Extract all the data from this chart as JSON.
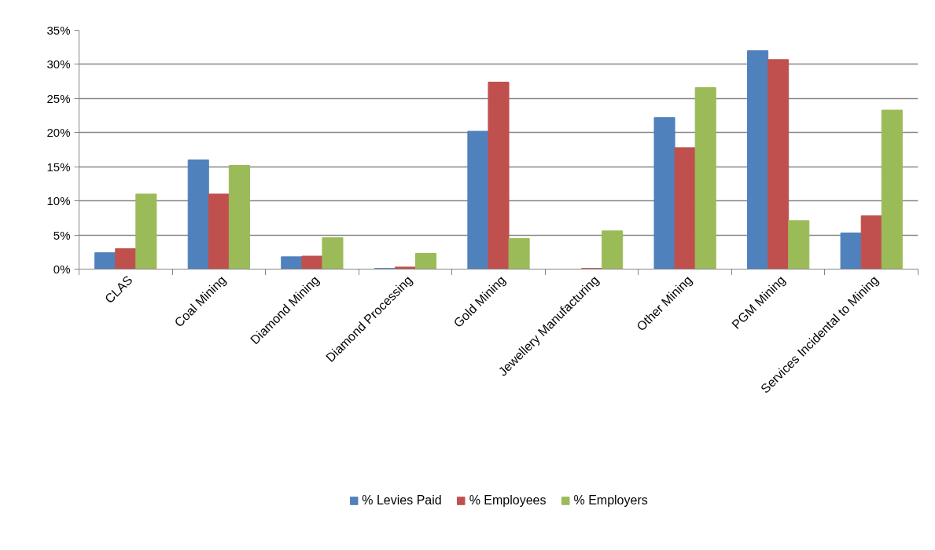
{
  "chart_data": {
    "type": "bar",
    "categories": [
      "CLAS",
      "Coal Mining",
      "Diamond Mining",
      "Diamond Processing",
      "Gold Mining",
      "Jewellery Manufacturing",
      "Other Mining",
      "PGM Mining",
      "Services Incidental to Mining"
    ],
    "series": [
      {
        "name": "% Levies Paid",
        "color": "#4f81bd",
        "values": [
          2.4,
          16.0,
          1.8,
          0.1,
          20.2,
          0.0,
          22.2,
          32.0,
          5.3
        ]
      },
      {
        "name": "% Employees",
        "color": "#c0504d",
        "values": [
          3.0,
          11.0,
          1.9,
          0.3,
          27.4,
          0.1,
          17.8,
          30.7,
          7.8
        ]
      },
      {
        "name": "% Employers",
        "color": "#9bbb59",
        "values": [
          11.0,
          15.2,
          4.6,
          2.3,
          4.5,
          5.6,
          26.6,
          7.1,
          23.3
        ]
      }
    ],
    "ylim": [
      0,
      35
    ],
    "yticks": [
      {
        "value": 0,
        "label": "0%"
      },
      {
        "value": 5,
        "label": "5%"
      },
      {
        "value": 10,
        "label": "10%"
      },
      {
        "value": 15,
        "label": "15%"
      },
      {
        "value": 20,
        "label": "20%"
      },
      {
        "value": 25,
        "label": "25%"
      },
      {
        "value": 30,
        "label": "30%"
      },
      {
        "value": 35,
        "label": "35%"
      }
    ],
    "grid": "y",
    "legend": "bottom"
  }
}
